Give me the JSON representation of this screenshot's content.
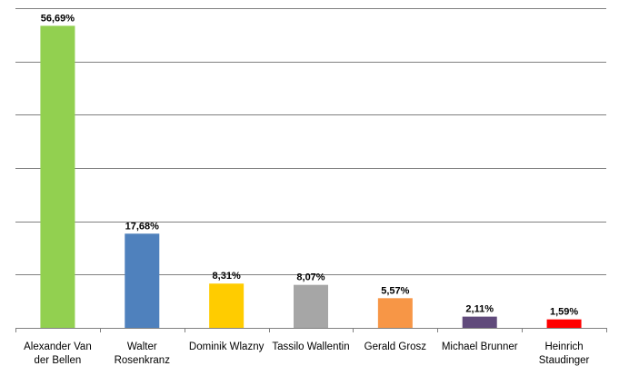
{
  "chart_data": {
    "type": "bar",
    "categories": [
      [
        "Alexander Van",
        "der Bellen"
      ],
      [
        "Walter",
        "Rosenkranz"
      ],
      [
        "Dominik Wlazny"
      ],
      [
        "Tassilo Wallentin"
      ],
      [
        "Gerald Grosz"
      ],
      [
        "Michael Brunner"
      ],
      [
        "Heinrich",
        "Staudinger"
      ]
    ],
    "values": [
      56.69,
      17.68,
      8.31,
      8.07,
      5.57,
      2.11,
      1.59
    ],
    "value_labels": [
      "56,69%",
      "17,68%",
      "8,31%",
      "8,07%",
      "5,57%",
      "2,11%",
      "1,59%"
    ],
    "colors": [
      "#92d050",
      "#4f81bd",
      "#ffcc00",
      "#a6a6a6",
      "#f79646",
      "#604a7b",
      "#ff0000"
    ],
    "ylim": [
      0,
      60
    ],
    "grid": true,
    "y_tick_labels": false,
    "title": "",
    "xlabel": "",
    "ylabel": ""
  }
}
